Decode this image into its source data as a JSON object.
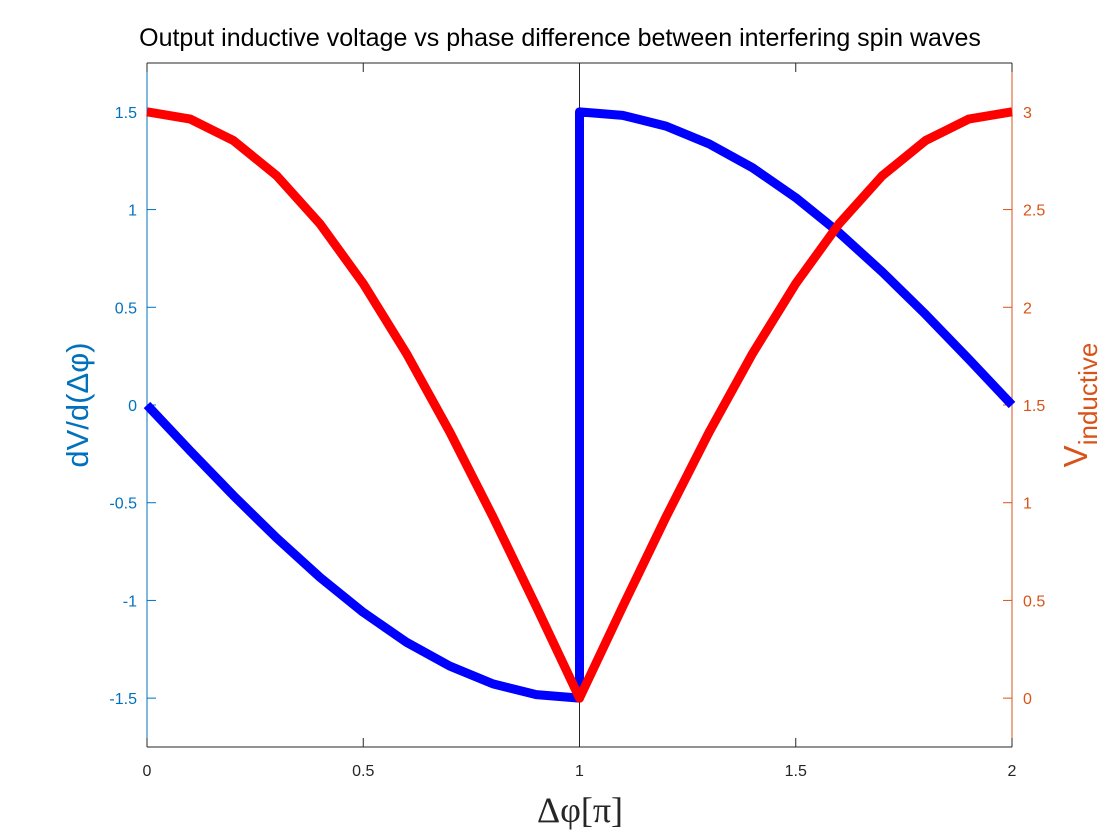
{
  "chart_data": {
    "type": "line",
    "title": "Output inductive voltage vs phase difference between interfering spin waves",
    "xlabel": "Δφ[π]",
    "ylabel_left": "dV/d(Δφ)",
    "ylabel_right": {
      "main": "V",
      "subscript": "inductive"
    },
    "xlim": [
      0,
      2
    ],
    "ylim_left": [
      -1.75,
      1.75
    ],
    "ylim_right": [
      -0.25,
      3.25
    ],
    "x_ticks": [
      "0",
      "0.5",
      "1",
      "1.5",
      "2"
    ],
    "y_left_ticks": [
      "-1.5",
      "-1",
      "-0.5",
      "0",
      "0.5",
      "1",
      "1.5"
    ],
    "y_right_ticks": [
      "0",
      "0.5",
      "1",
      "1.5",
      "2",
      "2.5",
      "3"
    ],
    "grid": false,
    "series": [
      {
        "axis": "left",
        "color": "#0000ff",
        "x": [
          0,
          0.1,
          0.2,
          0.3,
          0.4,
          0.5,
          0.6,
          0.7,
          0.8,
          0.9,
          1.0,
          1.0,
          1.1,
          1.2,
          1.3,
          1.4,
          1.5,
          1.6,
          1.7,
          1.8,
          1.9,
          2.0
        ],
        "y": [
          0,
          -0.235,
          -0.464,
          -0.681,
          -0.882,
          -1.061,
          -1.214,
          -1.336,
          -1.427,
          -1.482,
          -1.5,
          1.5,
          1.482,
          1.427,
          1.336,
          1.214,
          1.061,
          0.882,
          0.681,
          0.464,
          0.235,
          0
        ]
      },
      {
        "axis": "right",
        "color": "#ff0000",
        "x": [
          0,
          0.1,
          0.2,
          0.3,
          0.4,
          0.5,
          0.6,
          0.7,
          0.8,
          0.9,
          1.0,
          1.1,
          1.2,
          1.3,
          1.4,
          1.5,
          1.6,
          1.7,
          1.8,
          1.9,
          2.0
        ],
        "y": [
          3.0,
          2.963,
          2.853,
          2.673,
          2.427,
          2.121,
          1.763,
          1.362,
          0.927,
          0.469,
          0,
          0.469,
          0.927,
          1.362,
          1.763,
          2.121,
          2.427,
          2.673,
          2.853,
          2.963,
          3.0
        ]
      }
    ],
    "colors": {
      "left_axis": "#0072bd",
      "right_axis": "#d95319",
      "axis_black": "#262626"
    }
  }
}
